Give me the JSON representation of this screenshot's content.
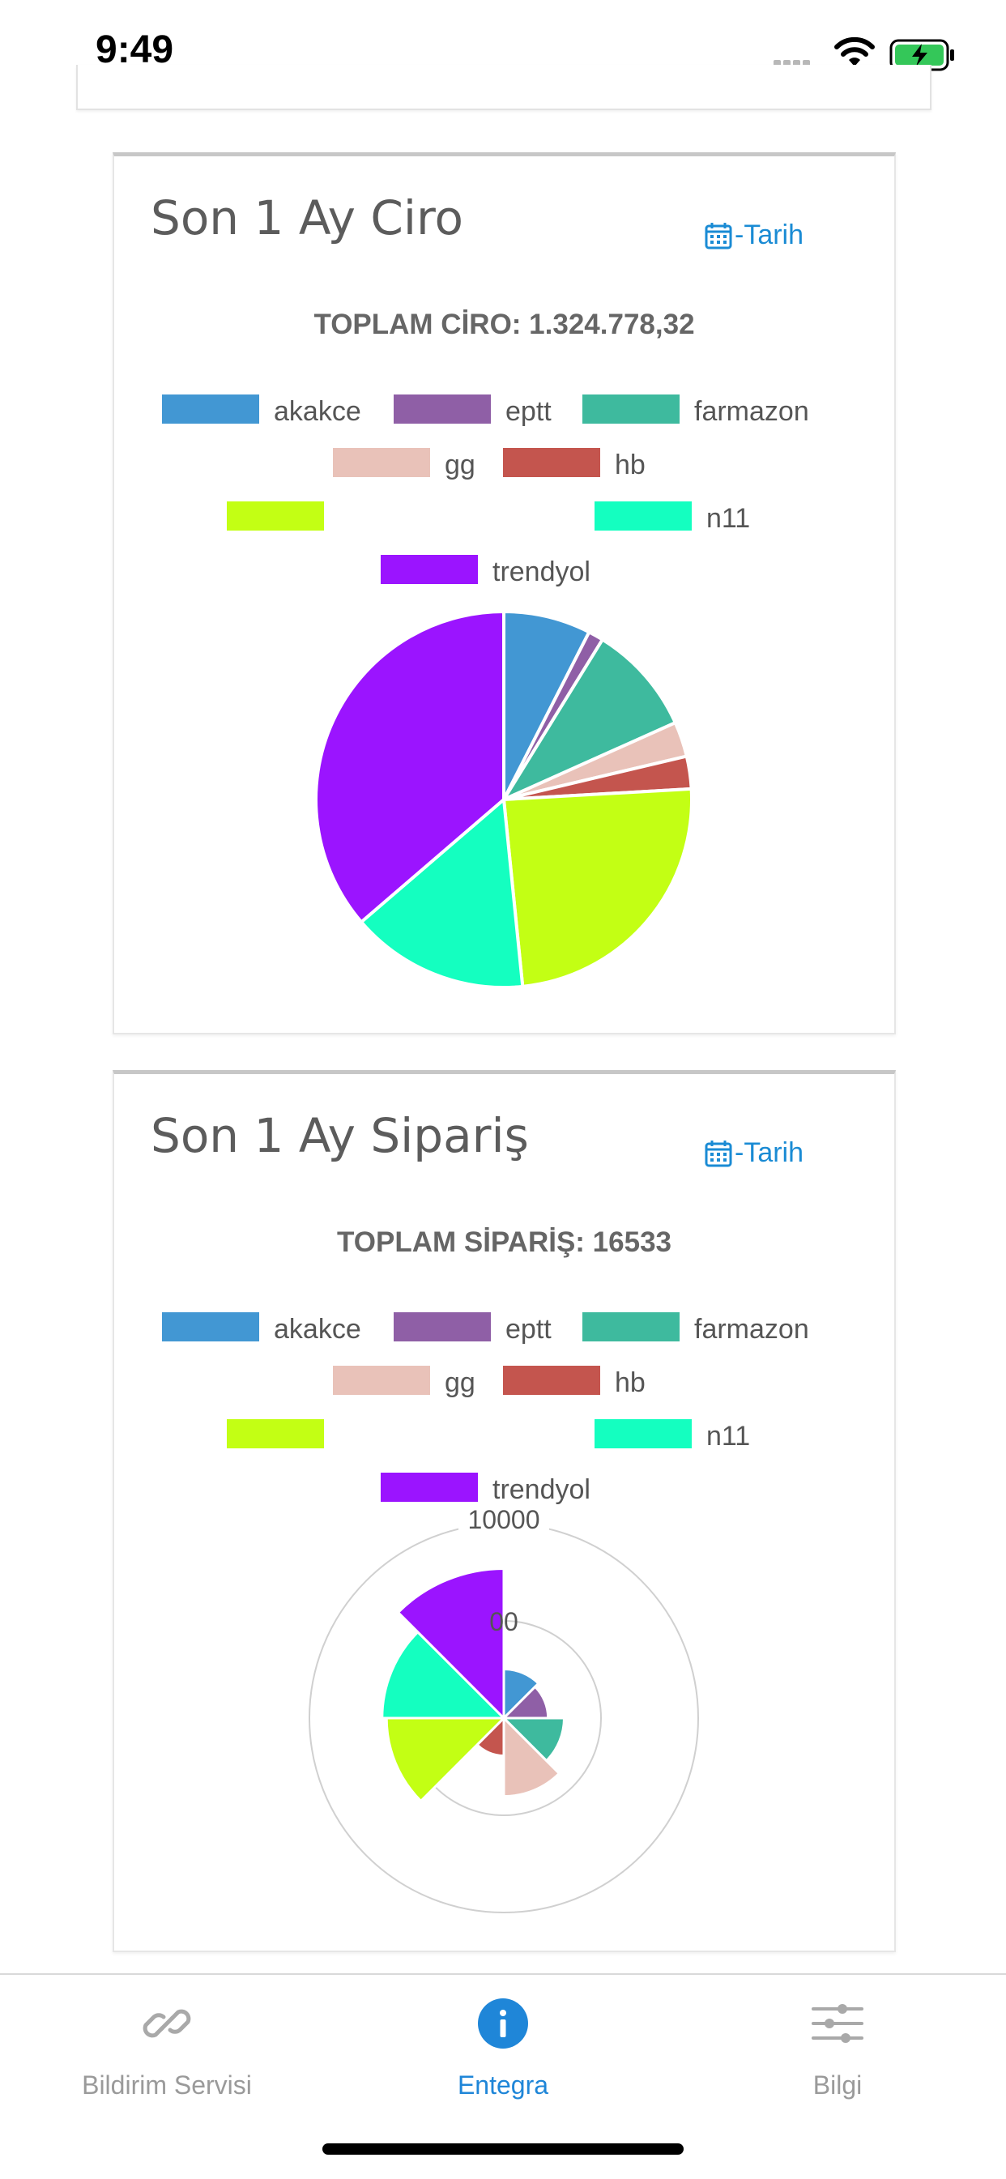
{
  "status_bar": {
    "time": "9:49"
  },
  "cards": [
    {
      "title": "Son 1 Ay Ciro",
      "date_button": "-Tarih",
      "total_text": "TOPLAM CİRO: 1.324.778,32",
      "legend": [
        {
          "label": "akakce",
          "color": "#4297d3"
        },
        {
          "label": "eptt",
          "color": "#8f5fa6"
        },
        {
          "label": "farmazon",
          "color": "#3eba9e"
        },
        {
          "label": "gg",
          "color": "#e9c2b9"
        },
        {
          "label": "hb",
          "color": "#c4554e"
        },
        {
          "label": "",
          "color": "#c3ff14"
        },
        {
          "label": "n11",
          "color": "#14ffc0"
        },
        {
          "label": "trendyol",
          "color": "#9b14ff"
        }
      ]
    },
    {
      "title": "Son 1 Ay Sipariş",
      "date_button": "-Tarih",
      "total_text": "TOPLAM SİPARİŞ: 16533",
      "legend": [
        {
          "label": "akakce",
          "color": "#4297d3"
        },
        {
          "label": "eptt",
          "color": "#8f5fa6"
        },
        {
          "label": "farmazon",
          "color": "#3eba9e"
        },
        {
          "label": "gg",
          "color": "#e9c2b9"
        },
        {
          "label": "hb",
          "color": "#c4554e"
        },
        {
          "label": "",
          "color": "#c3ff14"
        },
        {
          "label": "n11",
          "color": "#14ffc0"
        },
        {
          "label": "trendyol",
          "color": "#9b14ff"
        }
      ]
    }
  ],
  "chart_data": [
    {
      "type": "pie",
      "title": "Son 1 Ay Ciro",
      "categories": [
        "akakce",
        "eptt",
        "farmazon",
        "gg",
        "hb",
        "",
        "n11",
        "trendyol"
      ],
      "values": [
        7.5,
        1.3,
        9.5,
        3.0,
        2.8,
        24.3,
        15.3,
        36.3
      ],
      "value_unit": "percent of total (estimated)",
      "colors": [
        "#4297d3",
        "#8f5fa6",
        "#3eba9e",
        "#e9c2b9",
        "#c4554e",
        "#c3ff14",
        "#14ffc0",
        "#9b14ff"
      ],
      "legend_position": "top"
    },
    {
      "type": "polarArea",
      "title": "Son 1 Ay Sipariş",
      "categories": [
        "akakce",
        "eptt",
        "farmazon",
        "gg",
        "hb",
        "",
        "n11",
        "trendyol"
      ],
      "values": [
        20,
        15,
        40,
        120,
        10,
        1300,
        1700,
        9300
      ],
      "colors": [
        "#4297d3",
        "#8f5fa6",
        "#3eba9e",
        "#e9c2b9",
        "#c4554e",
        "#c3ff14",
        "#14ffc0",
        "#9b14ff"
      ],
      "radial_scale": "logarithmic",
      "radial_ticks": [
        "00",
        "10000"
      ],
      "legend_position": "top"
    }
  ],
  "tabbar": {
    "items": [
      {
        "label": "Bildirim Servisi",
        "icon": "link-icon"
      },
      {
        "label": "Entegra",
        "icon": "info-icon"
      },
      {
        "label": "Bilgi",
        "icon": "sliders-icon"
      }
    ],
    "active_color": "#1f86d8",
    "inactive_color": "#9a9a9a"
  }
}
